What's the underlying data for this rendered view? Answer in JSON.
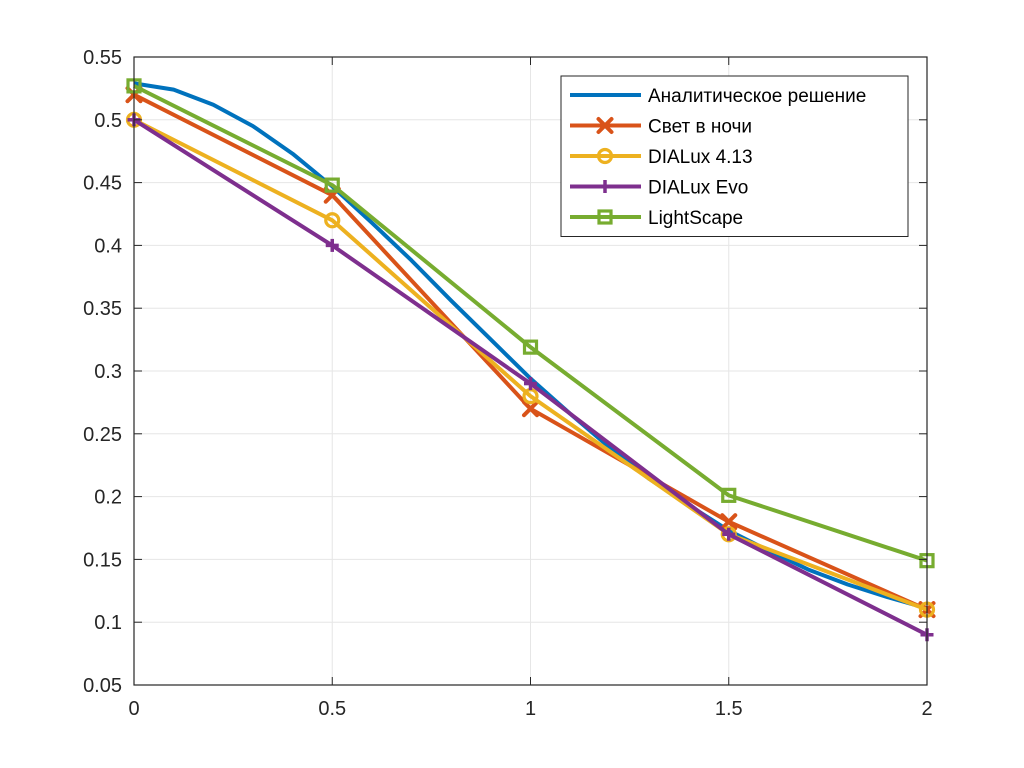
{
  "chart_data": {
    "type": "line",
    "title": "",
    "xlabel": "",
    "ylabel": "",
    "xlim": [
      0,
      2
    ],
    "ylim": [
      0.05,
      0.55
    ],
    "xticks": [
      0,
      0.5,
      1,
      1.5,
      2
    ],
    "xtick_labels": [
      "0",
      "0.5",
      "1",
      "1.5",
      "2"
    ],
    "yticks": [
      0.05,
      0.1,
      0.15,
      0.2,
      0.25,
      0.3,
      0.35,
      0.4,
      0.45,
      0.5,
      0.55
    ],
    "ytick_labels": [
      "0.05",
      "0.1",
      "0.15",
      "0.2",
      "0.25",
      "0.3",
      "0.35",
      "0.4",
      "0.45",
      "0.5",
      "0.55"
    ],
    "grid": true,
    "legend_position": "top-right",
    "series": [
      {
        "name": "Аналитическое решение",
        "color": "#0072BD",
        "marker": "none",
        "x": [
          0,
          0.1,
          0.2,
          0.3,
          0.4,
          0.5,
          0.6,
          0.7,
          0.8,
          0.9,
          1.0,
          1.1,
          1.2,
          1.3,
          1.4,
          1.5,
          1.6,
          1.7,
          1.8,
          1.9,
          2.0
        ],
        "y": [
          0.529,
          0.524,
          0.512,
          0.495,
          0.473,
          0.447,
          0.418,
          0.388,
          0.356,
          0.325,
          0.294,
          0.266,
          0.239,
          0.214,
          0.193,
          0.173,
          0.157,
          0.142,
          0.13,
          0.12,
          0.111
        ]
      },
      {
        "name": "Свет в ночи",
        "color": "#D95319",
        "marker": "x",
        "x": [
          0,
          0.5,
          1,
          1.5,
          2
        ],
        "y": [
          0.52,
          0.44,
          0.27,
          0.18,
          0.11
        ]
      },
      {
        "name": "DIALux 4.13",
        "color": "#EDB120",
        "marker": "o",
        "x": [
          0,
          0.5,
          1,
          1.5,
          2
        ],
        "y": [
          0.5,
          0.42,
          0.28,
          0.17,
          0.11
        ]
      },
      {
        "name": "DIALux Evo",
        "color": "#7E2F8E",
        "marker": "+",
        "x": [
          0,
          0.5,
          1,
          1.5,
          2
        ],
        "y": [
          0.5,
          0.4,
          0.29,
          0.17,
          0.09
        ]
      },
      {
        "name": "LightScape",
        "color": "#77AC30",
        "marker": "s",
        "x": [
          0,
          0.5,
          1,
          1.5,
          2
        ],
        "y": [
          0.527,
          0.448,
          0.319,
          0.201,
          0.149
        ]
      }
    ]
  }
}
